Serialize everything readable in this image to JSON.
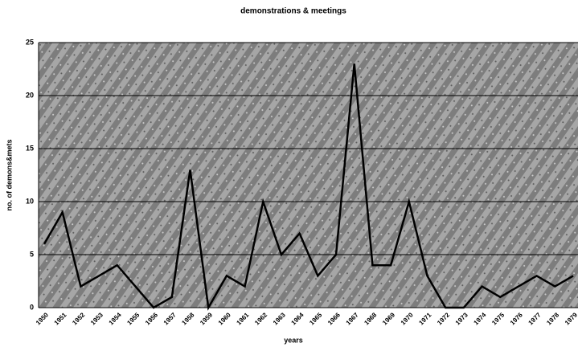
{
  "chart_data": {
    "type": "line",
    "title": "demonstrations & meetings",
    "x_label": "years",
    "y_label": "no. of demons&mets",
    "categories": [
      "1950",
      "1951",
      "1952",
      "1953",
      "1954",
      "1955",
      "1956",
      "1957",
      "1958",
      "1959",
      "1960",
      "1961",
      "1962",
      "1963",
      "1964",
      "1965",
      "1966",
      "1967",
      "1968",
      "1969",
      "1970",
      "1971",
      "1972",
      "1973",
      "1974",
      "1975",
      "1976",
      "1977",
      "1978",
      "1979"
    ],
    "series": [
      {
        "name": "demonstrations & meetings",
        "color": "#000000",
        "values": [
          6,
          9,
          2,
          3,
          4,
          2,
          0,
          1,
          13,
          0,
          3,
          2,
          10,
          5,
          7,
          3,
          5,
          23,
          4,
          4,
          10,
          3,
          0,
          0,
          2,
          1,
          2,
          3,
          2,
          3
        ]
      }
    ],
    "ylim": [
      0,
      25
    ],
    "yticks": [
      0,
      5,
      10,
      15,
      20,
      25
    ],
    "grid": true
  }
}
